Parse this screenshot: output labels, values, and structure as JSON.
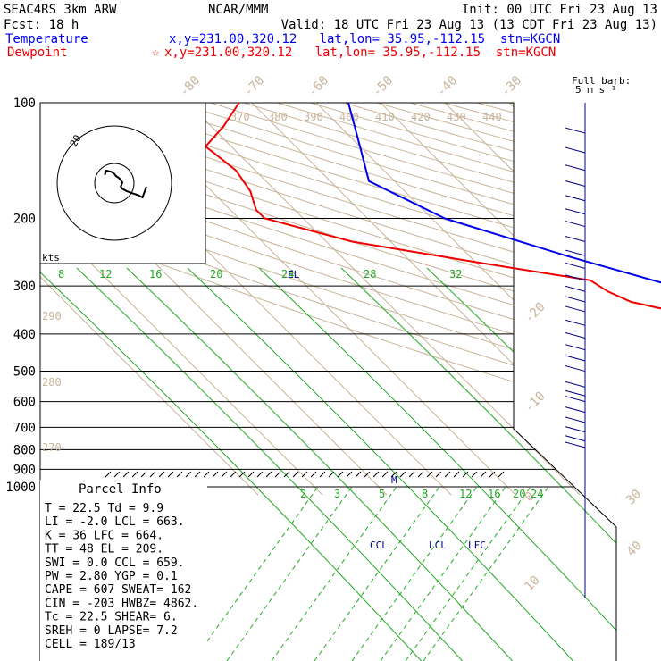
{
  "header": {
    "model": "SEAC4RS  3km ARW",
    "fcst": "Fcst:   18 h",
    "center": "NCAR/MMM",
    "init": "Init: 00 UTC Fri 23 Aug 13",
    "valid": "Valid: 18 UTC Fri 23 Aug 13 (13 CDT Fri 23 Aug 13)",
    "temperature_label": "Temperature",
    "temperature_loc": "x,y=231.00,320.12   lat,lon= 35.95,-112.15  stn=KGCN",
    "dewpoint_label": "Dewpoint",
    "dewpoint_loc": "x,y=231.00,320.12   lat,lon= 35.95,-112.15  stn=KGCN",
    "dewpoint_star": "☆"
  },
  "colors": {
    "temperature": "#0000ee",
    "dewpoint": "#ee0000",
    "isotherm": "#c8b49a",
    "theta_label": "#c8b49a",
    "mixing_ratio": "#22aa22",
    "isobar": "#000000",
    "barb": "#000088",
    "parcel": "#0000cc"
  },
  "barb_label": {
    "line1": "Full barb:",
    "line2": "5 m s⁻¹"
  },
  "hodograph": {
    "units_label": "kts",
    "ring_label": "20"
  },
  "parcel_info": {
    "title": "Parcel Info",
    "rows": [
      "T  =   22.5  Td =   9.9",
      "LI =   -2.0  LCL =  663.",
      "K  =     36  LFC =  664.",
      "TT =     48  EL  =  209.",
      "SWI =   0.0  CCL =  659.",
      "PW  =  2.80  YGP =   0.1",
      "CAPE =  607  SWEAT=  162",
      "CIN  = -203  HWBZ= 4862.",
      "Tc  =  22.5  SHEAR=   6.",
      "SREH =     0  LAPSE=  7.2",
      "CELL = 189/13"
    ]
  },
  "annotations": {
    "el": "EL",
    "ccl": "CCL",
    "lcl": "LCL",
    "lfc": "LFC",
    "m": "M"
  },
  "chart_data": {
    "type": "line",
    "title": "Skew-T log-P sounding",
    "ylabel": "Pressure (hPa)",
    "pressure_ticks": [
      "100",
      "200",
      "300",
      "400",
      "500",
      "600",
      "700",
      "800",
      "900",
      "1000"
    ],
    "isotherm_labels": [
      "-80",
      "-70",
      "-60",
      "-50",
      "-40",
      "-30",
      "-20",
      "-10",
      "0",
      "10",
      "20",
      "30",
      "40"
    ],
    "theta_labels_top": [
      "370",
      "380",
      "390",
      "400",
      "410",
      "420",
      "430",
      "440"
    ],
    "theta_labels_left": [
      "290",
      "280",
      "270"
    ],
    "mixing_ratio_labels_upper": [
      "8",
      "12",
      "16",
      "20",
      "24",
      "28",
      "32"
    ],
    "mixing_ratio_labels_lower": [
      "2",
      "3",
      "5",
      "8",
      "12",
      "16",
      "20",
      "24"
    ],
    "series": [
      {
        "name": "Temperature",
        "points": [
          [
            100,
            -55
          ],
          [
            130,
            -60
          ],
          [
            160,
            -64
          ],
          [
            200,
            -58
          ],
          [
            250,
            -45
          ],
          [
            300,
            -33
          ],
          [
            350,
            -22
          ],
          [
            400,
            -15
          ],
          [
            450,
            -9
          ],
          [
            480,
            -5
          ],
          [
            500,
            -3
          ],
          [
            560,
            3
          ],
          [
            600,
            8
          ],
          [
            650,
            13
          ],
          [
            700,
            17
          ],
          [
            750,
            21
          ],
          [
            790,
            23
          ]
        ]
      },
      {
        "name": "Dewpoint",
        "points": [
          [
            100,
            -72
          ],
          [
            115,
            -78
          ],
          [
            130,
            -84
          ],
          [
            150,
            -83
          ],
          [
            170,
            -84
          ],
          [
            190,
            -86
          ],
          [
            200,
            -86
          ],
          [
            230,
            -76
          ],
          [
            260,
            -60
          ],
          [
            290,
            -45
          ],
          [
            310,
            -44
          ],
          [
            330,
            -42
          ],
          [
            360,
            -34
          ],
          [
            400,
            -27
          ],
          [
            440,
            -20
          ],
          [
            480,
            -10
          ],
          [
            500,
            -5
          ],
          [
            550,
            0
          ],
          [
            600,
            5
          ],
          [
            650,
            8
          ],
          [
            700,
            10
          ],
          [
            750,
            9
          ],
          [
            790,
            9
          ]
        ]
      }
    ],
    "wind_profile_hpa": [
      120,
      135,
      150,
      165,
      180,
      195,
      210,
      230,
      250,
      270,
      290,
      310,
      330,
      350,
      380,
      410,
      440,
      470,
      500,
      550,
      580,
      600,
      640,
      680,
      720,
      760,
      790
    ],
    "hodograph_points": [
      [
        40,
        -20
      ],
      [
        35,
        -30
      ],
      [
        30,
        -28
      ],
      [
        22,
        -26
      ],
      [
        15,
        -24
      ],
      [
        10,
        -22
      ],
      [
        8,
        -20
      ],
      [
        10,
        -16
      ],
      [
        6,
        -12
      ],
      [
        2,
        -10
      ],
      [
        0,
        -8
      ],
      [
        -4,
        -6
      ],
      [
        -10,
        -5
      ],
      [
        -12,
        -9
      ]
    ]
  }
}
